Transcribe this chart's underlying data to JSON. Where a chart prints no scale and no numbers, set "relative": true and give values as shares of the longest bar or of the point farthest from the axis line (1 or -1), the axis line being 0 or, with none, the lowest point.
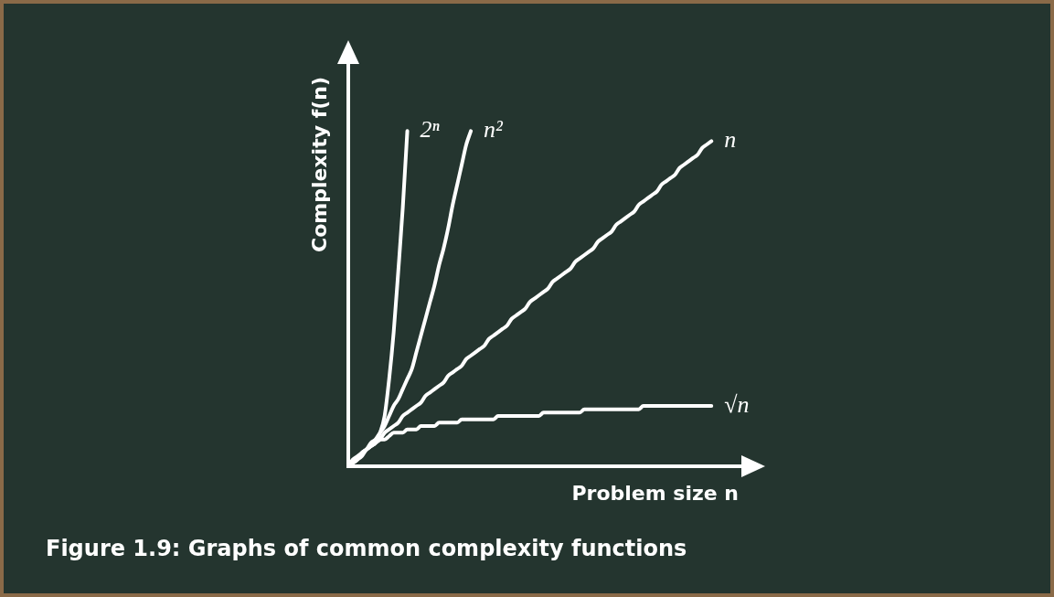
{
  "chart_data": {
    "type": "line",
    "relative": true,
    "tick_labels": false,
    "legend": false,
    "grid": false,
    "marker": "none",
    "line_style": "solid",
    "xlabel": "Problem size n",
    "ylabel": "Complexity f(n)",
    "annotations": [
      "Figure 1.9: Graphs of common complexity functions"
    ],
    "categories": [
      null,
      null,
      null,
      null,
      null,
      null,
      null,
      null,
      null,
      null,
      null,
      null,
      null,
      null,
      null,
      null,
      null,
      null,
      null,
      null,
      null,
      null,
      null,
      null,
      null,
      null,
      null,
      null,
      null,
      null,
      null,
      null,
      null,
      null,
      null,
      null,
      null,
      null,
      null,
      null,
      null,
      null,
      null,
      null,
      null,
      null,
      null,
      null,
      null,
      null,
      null,
      null,
      null,
      null,
      null,
      null,
      null,
      null,
      null,
      null,
      null,
      null,
      null,
      null,
      null,
      null,
      null,
      null,
      null,
      null,
      null,
      null,
      null,
      null,
      null,
      null,
      null,
      null,
      null,
      null,
      null,
      null,
      null,
      null,
      null,
      null,
      null,
      null
    ],
    "series": [
      {
        "name": "2ⁿ",
        "color": "#ffffff",
        "values": [
          0,
          0.01,
          0.02,
          0.03,
          0.05,
          0.06,
          0.07,
          0.1,
          0.15,
          0.26,
          0.4,
          0.58,
          0.77,
          1,
          null,
          null,
          null,
          null,
          null,
          null,
          null,
          null,
          null,
          null,
          null,
          null,
          null,
          null,
          null,
          null,
          null,
          null,
          null,
          null,
          null,
          null,
          null,
          null,
          null,
          null,
          null,
          null,
          null,
          null,
          null,
          null,
          null,
          null,
          null,
          null,
          null,
          null,
          null,
          null,
          null,
          null,
          null,
          null,
          null,
          null,
          null,
          null,
          null,
          null,
          null,
          null,
          null,
          null,
          null,
          null,
          null,
          null,
          null,
          null,
          null,
          null,
          null,
          null,
          null,
          null,
          null,
          null,
          null,
          null,
          null,
          null,
          null,
          null
        ]
      },
      {
        "name": "n²",
        "color": "#ffffff",
        "values": [
          0,
          0.01,
          0.02,
          0.04,
          0.05,
          0.07,
          0.08,
          0.1,
          0.12,
          0.15,
          0.18,
          0.2,
          0.23,
          0.26,
          0.29,
          0.34,
          0.39,
          0.44,
          0.49,
          0.54,
          0.6,
          0.65,
          0.71,
          0.78,
          0.84,
          0.9,
          0.96,
          1,
          null,
          null,
          null,
          null,
          null,
          null,
          null,
          null,
          null,
          null,
          null,
          null,
          null,
          null,
          null,
          null,
          null,
          null,
          null,
          null,
          null,
          null,
          null,
          null,
          null,
          null,
          null,
          null,
          null,
          null,
          null,
          null,
          null,
          null,
          null,
          null,
          null,
          null,
          null,
          null,
          null,
          null,
          null,
          null,
          null,
          null,
          null,
          null,
          null,
          null,
          null,
          null,
          null,
          null,
          null,
          null,
          null,
          null,
          null,
          null
        ]
      },
      {
        "name": "n",
        "color": "#ffffff",
        "values": [
          0,
          0.01,
          0.02,
          0.04,
          0.05,
          0.06,
          0.07,
          0.08,
          0.1,
          0.11,
          0.12,
          0.13,
          0.15,
          0.16,
          0.17,
          0.18,
          0.19,
          0.21,
          0.22,
          0.23,
          0.24,
          0.25,
          0.27,
          0.28,
          0.29,
          0.3,
          0.32,
          0.33,
          0.34,
          0.35,
          0.36,
          0.38,
          0.39,
          0.4,
          0.41,
          0.42,
          0.44,
          0.45,
          0.46,
          0.47,
          0.49,
          0.5,
          0.51,
          0.52,
          0.53,
          0.55,
          0.56,
          0.57,
          0.58,
          0.59,
          0.61,
          0.62,
          0.63,
          0.64,
          0.65,
          0.67,
          0.68,
          0.69,
          0.7,
          0.72,
          0.73,
          0.74,
          0.75,
          0.76,
          0.78,
          0.79,
          0.8,
          0.81,
          0.82,
          0.84,
          0.85,
          0.86,
          0.87,
          0.89,
          0.9,
          0.91,
          0.92,
          0.93,
          0.95,
          0.96,
          0.97,
          null,
          null,
          null,
          null,
          null,
          null,
          null
        ]
      },
      {
        "name": "√n",
        "color": "#ffffff",
        "values": [
          0,
          0.02,
          0.03,
          0.04,
          0.05,
          0.06,
          0.07,
          0.08,
          0.08,
          0.09,
          0.1,
          0.1,
          0.1,
          0.11,
          0.11,
          0.11,
          0.12,
          0.12,
          0.12,
          0.12,
          0.13,
          0.13,
          0.13,
          0.13,
          0.13,
          0.14,
          0.14,
          0.14,
          0.14,
          0.14,
          0.14,
          0.14,
          0.14,
          0.15,
          0.15,
          0.15,
          0.15,
          0.15,
          0.15,
          0.15,
          0.15,
          0.15,
          0.15,
          0.16,
          0.16,
          0.16,
          0.16,
          0.16,
          0.16,
          0.16,
          0.16,
          0.16,
          0.17,
          0.17,
          0.17,
          0.17,
          0.17,
          0.17,
          0.17,
          0.17,
          0.17,
          0.17,
          0.17,
          0.17,
          0.17,
          0.18,
          0.18,
          0.18,
          0.18,
          0.18,
          0.18,
          0.18,
          0.18,
          0.18,
          0.18,
          0.18,
          0.18,
          0.18,
          0.18,
          0.18,
          0.18,
          null,
          null,
          null,
          null,
          null,
          null,
          null
        ]
      }
    ]
  }
}
